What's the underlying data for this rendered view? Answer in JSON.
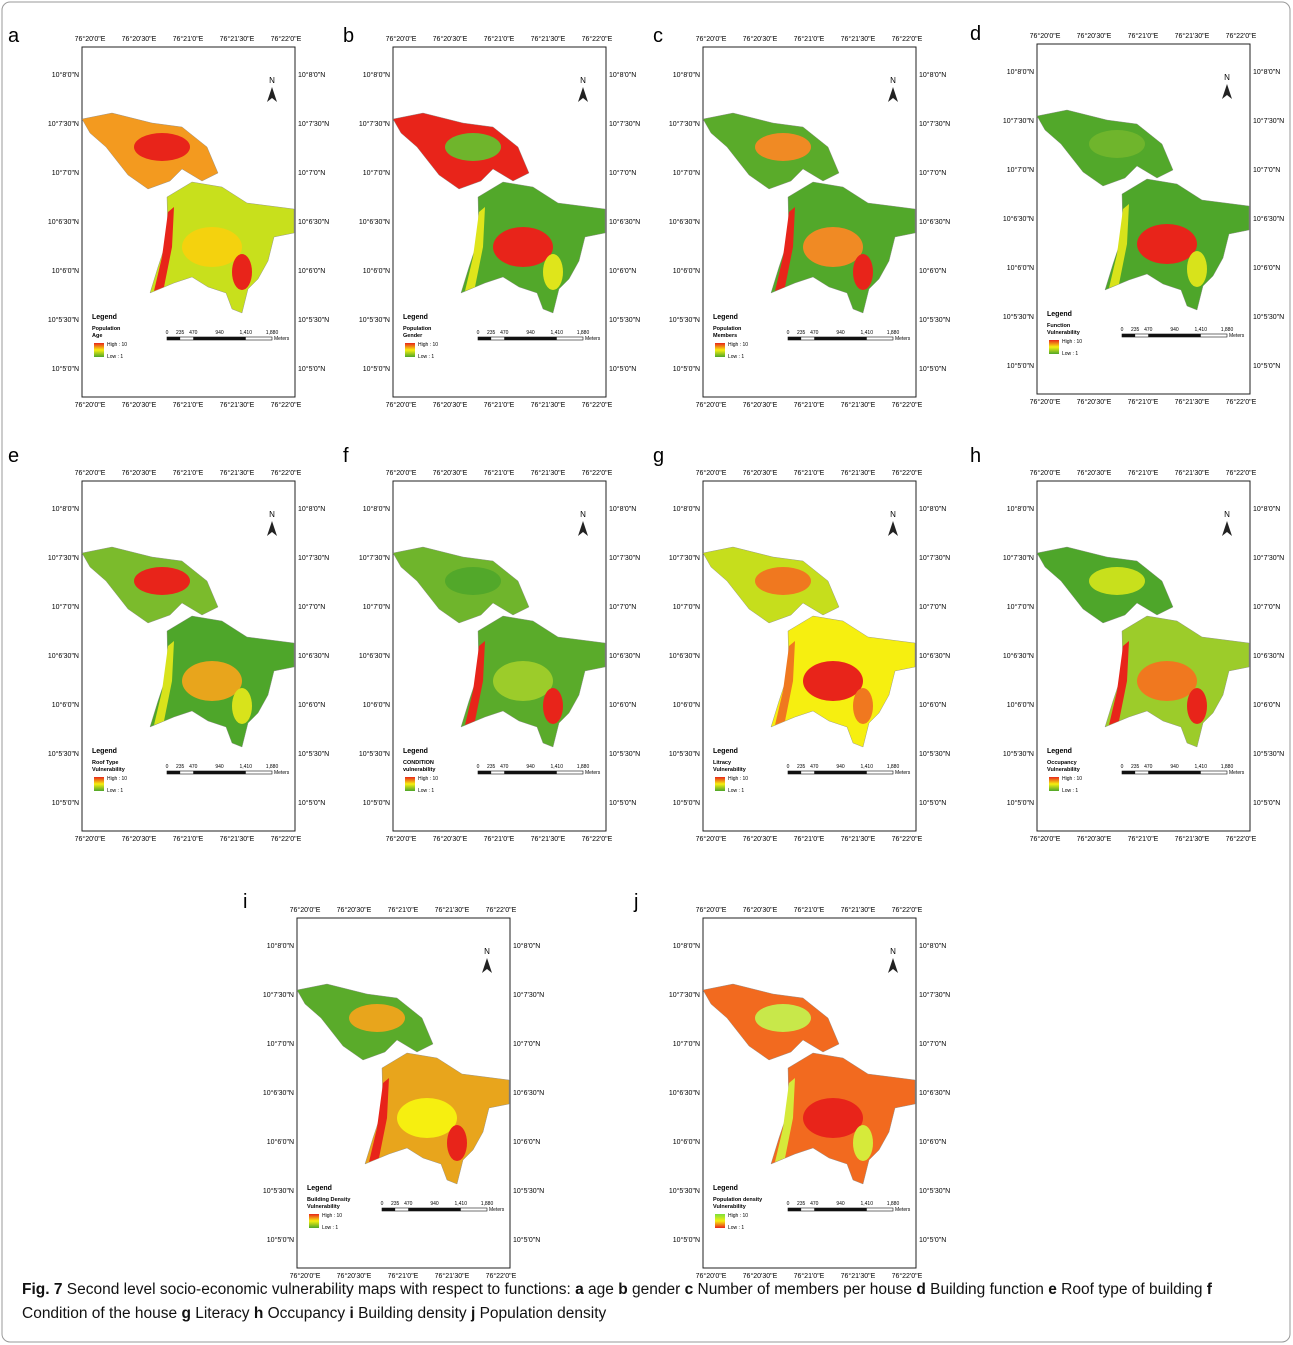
{
  "lon_ticks": [
    "76°20'0\"E",
    "76°20'30\"E",
    "76°21'0\"E",
    "76°21'30\"E",
    "76°22'0\"E"
  ],
  "lat_ticks": [
    "10°8'0\"N",
    "10°7'30\"N",
    "10°7'0\"N",
    "10°6'30\"N",
    "10°6'0\"N",
    "10°5'30\"N",
    "10°5'0\"N"
  ],
  "north": "N",
  "legend_heading": "Legend",
  "legend_high": "High : 10",
  "legend_low": "Low : 1",
  "scale_labels": [
    "0",
    "235",
    "470",
    "940",
    "1,410",
    "1,880"
  ],
  "scale_unit": "Meters",
  "panels": [
    {
      "letter": "a",
      "legend_lines": [
        "Population",
        "Age"
      ],
      "colors": [
        "#f39a1f",
        "#e8241a",
        "#c8e01c",
        "#f4d20e",
        "#e8241a"
      ]
    },
    {
      "letter": "b",
      "legend_lines": [
        "Population",
        "Gender"
      ],
      "colors": [
        "#e8241a",
        "#6fb52c",
        "#52a82a",
        "#e8241a",
        "#dfe51b"
      ]
    },
    {
      "letter": "c",
      "legend_lines": [
        "Population",
        "Members"
      ],
      "colors": [
        "#5aab2a",
        "#f08a24",
        "#52a82a",
        "#f08a24",
        "#e8241a"
      ]
    },
    {
      "letter": "d",
      "legend_lines": [
        "Function",
        "Vulnerability"
      ],
      "colors": [
        "#52a82a",
        "#6fb52c",
        "#4ea62a",
        "#e8241a",
        "#d8e31b"
      ]
    },
    {
      "letter": "e",
      "legend_lines": [
        "Roof Type",
        "Vulnerability"
      ],
      "colors": [
        "#7bbb2c",
        "#e8241a",
        "#4ea62a",
        "#e8a51c",
        "#d8e31b"
      ]
    },
    {
      "letter": "f",
      "legend_lines": [
        "CONDITION",
        "vulnerability"
      ],
      "colors": [
        "#6fb52c",
        "#52a82a",
        "#5aab2a",
        "#9ccc2a",
        "#e8241a"
      ]
    },
    {
      "letter": "g",
      "legend_lines": [
        "Litracy",
        "Vulnerability"
      ],
      "colors": [
        "#c6de1c",
        "#f0781f",
        "#f6ef10",
        "#e8241a",
        "#f0781f"
      ]
    },
    {
      "letter": "h",
      "legend_lines": [
        "Occupancy",
        "Vulnerability"
      ],
      "colors": [
        "#4ea62a",
        "#c8e01c",
        "#9ccc2a",
        "#f0781f",
        "#e8241a"
      ]
    },
    {
      "letter": "i",
      "legend_lines": [
        "Building Density",
        "Vulnerability"
      ],
      "colors": [
        "#5aab2a",
        "#e8a51c",
        "#e8a51c",
        "#f6ef10",
        "#e8241a"
      ]
    },
    {
      "letter": "j",
      "legend_lines": [
        "Population density",
        "Vulnerability"
      ],
      "colors": [
        "#f26a1f",
        "#c8e84a",
        "#f26a1f",
        "#e8241a",
        "#d6ea3a"
      ],
      "ramp_inverted": true
    }
  ],
  "caption": {
    "label": "Fig. 7",
    "intro": "Second level socio-economic vulnerability maps with respect to functions:",
    "items": [
      {
        "letter": "a",
        "text": "age"
      },
      {
        "letter": "b",
        "text": "gender"
      },
      {
        "letter": "c",
        "text": "Number of members per house"
      },
      {
        "letter": "d",
        "text": "Building function"
      },
      {
        "letter": "e",
        "text": "Roof type of building"
      },
      {
        "letter": "f",
        "text": "Condition of the house"
      },
      {
        "letter": "g",
        "text": "Literacy"
      },
      {
        "letter": "h",
        "text": "Occupancy"
      },
      {
        "letter": "i",
        "text": "Building density"
      },
      {
        "letter": "j",
        "text": "Population density"
      }
    ]
  }
}
